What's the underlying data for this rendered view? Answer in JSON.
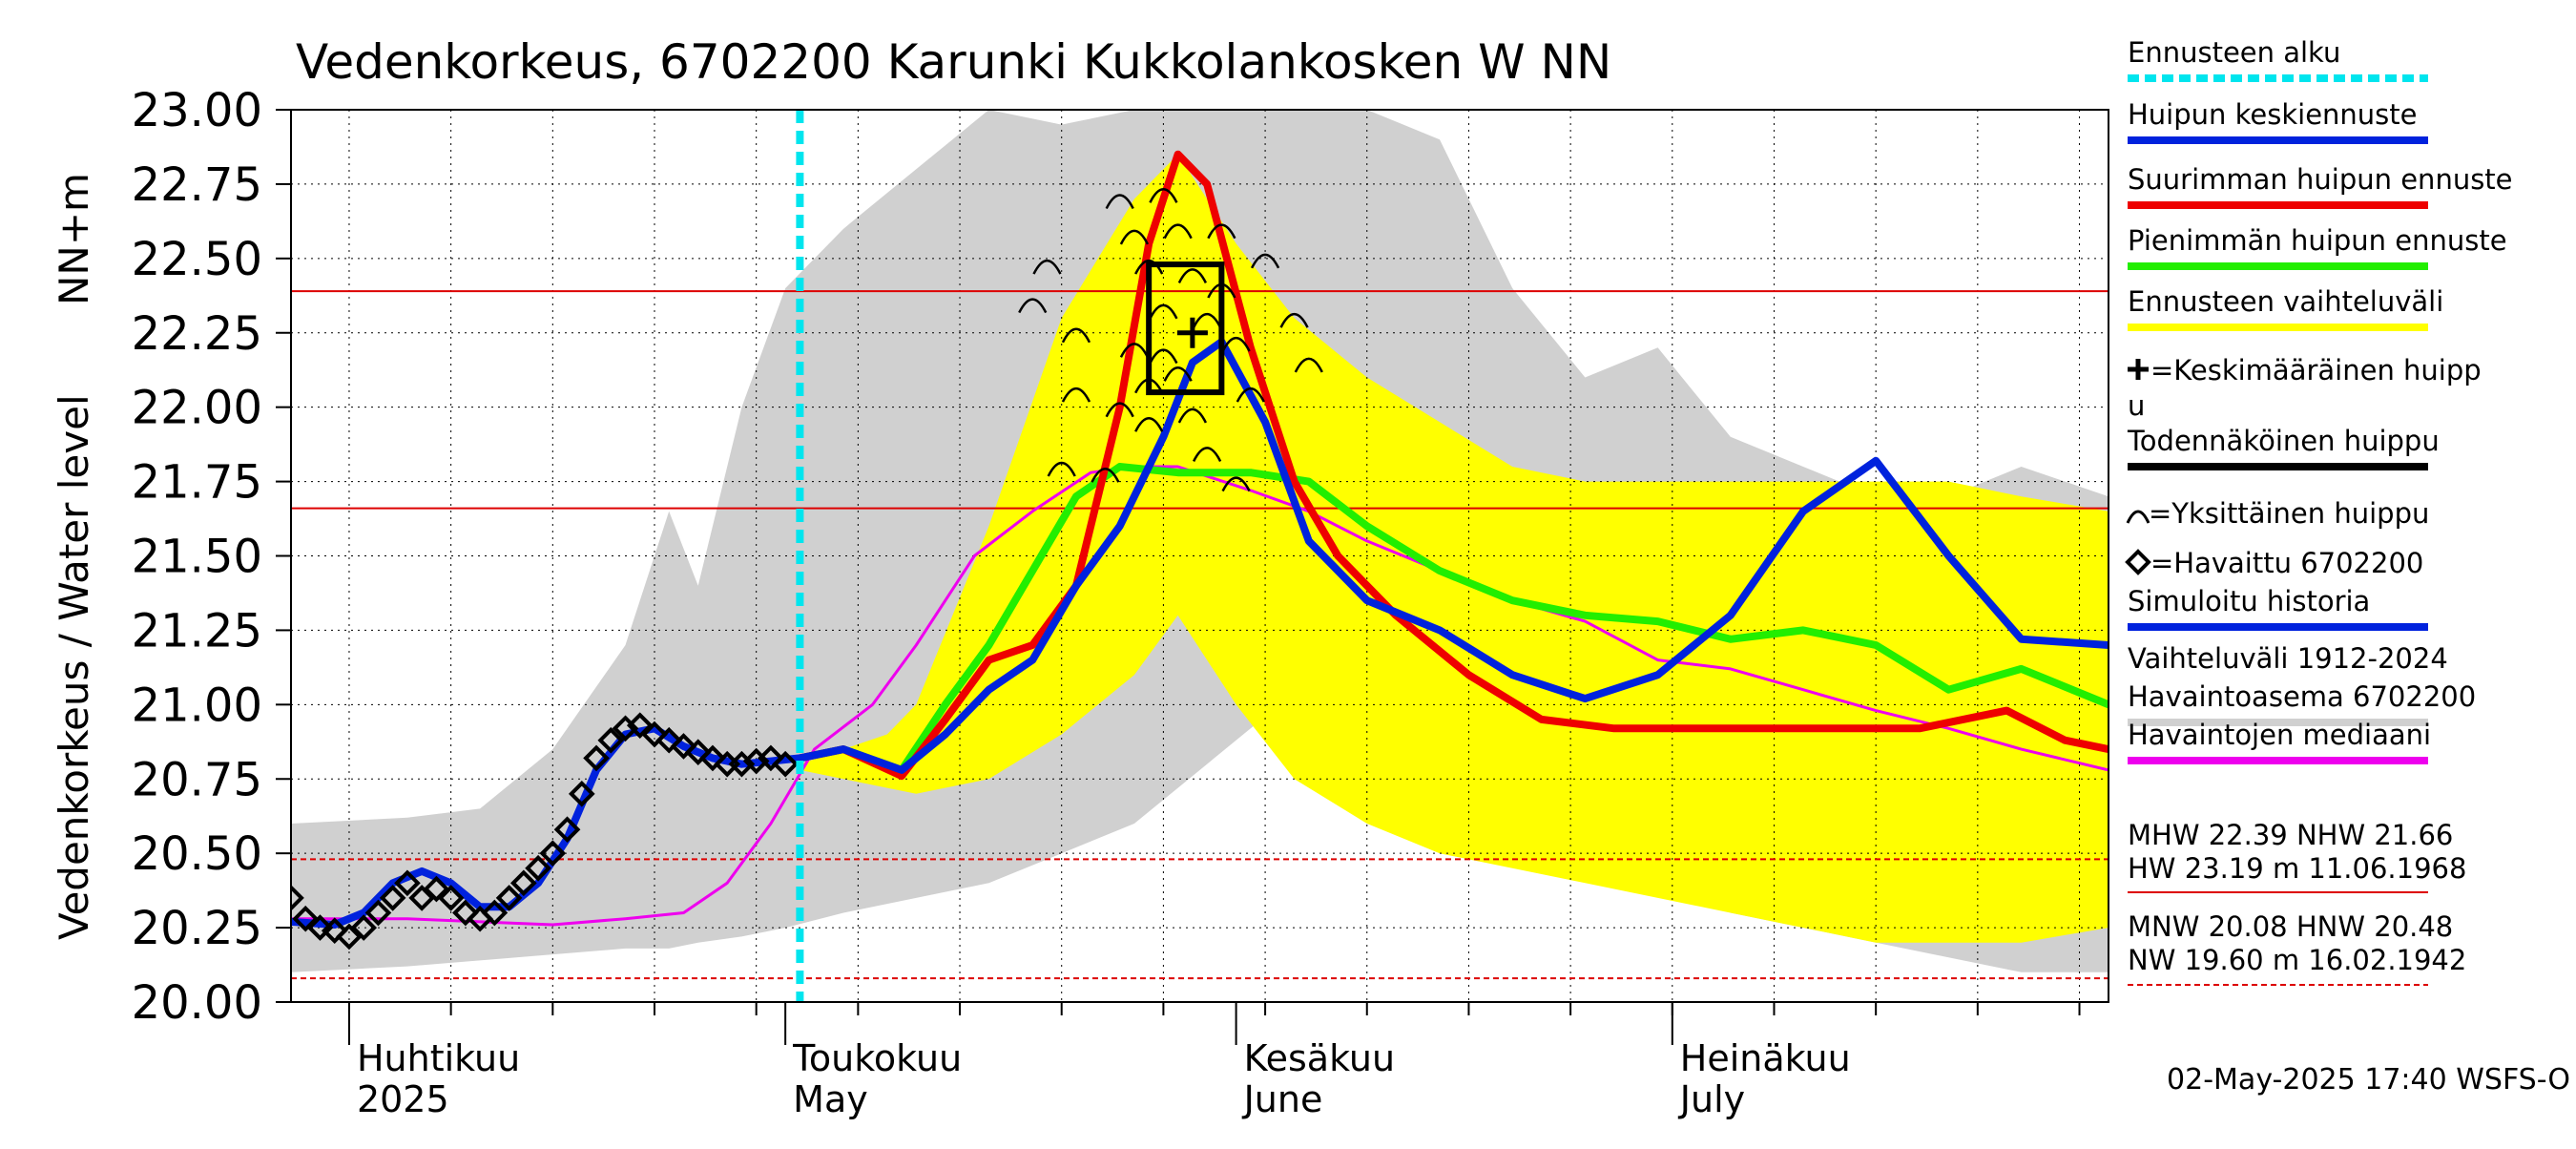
{
  "chart_data": {
    "type": "line",
    "title": "Vedenkorkeus, 6702200 Karunki Kukkolankosken W NN",
    "ylabel": "Vedenkorkeus / Water level   NN+m",
    "ylim": [
      20.0,
      23.0
    ],
    "yticks": [
      "20.00",
      "20.25",
      "20.50",
      "20.75",
      "21.00",
      "21.25",
      "21.50",
      "21.75",
      "22.00",
      "22.25",
      "22.50",
      "22.75",
      "23.00"
    ],
    "xlim": [
      "2025-03-28",
      "2025-07-31"
    ],
    "month_labels": [
      {
        "fi": "Huhtikuu",
        "en": "2025",
        "date": "2025-04-01"
      },
      {
        "fi": "Toukokuu",
        "en": "May",
        "date": "2025-05-01"
      },
      {
        "fi": "Kesäkuu",
        "en": "June",
        "date": "2025-06-01"
      },
      {
        "fi": "Heinäkuu",
        "en": "July",
        "date": "2025-07-01"
      }
    ],
    "forecast_start": "2025-05-02",
    "reference_lines": [
      {
        "name": "MHW",
        "value": 22.39,
        "style": "solid"
      },
      {
        "name": "NHW",
        "value": 21.66,
        "style": "solid"
      },
      {
        "name": "HNW",
        "value": 20.48,
        "style": "dashed"
      },
      {
        "name": "MNW",
        "value": 20.08,
        "style": "dashed"
      }
    ],
    "historical_range": {
      "name": "Vaihteluväli 1912-2024 Havaintoasema 6702200",
      "dates": [
        "2025-03-28",
        "2025-04-05",
        "2025-04-10",
        "2025-04-15",
        "2025-04-20",
        "2025-04-23",
        "2025-04-25",
        "2025-04-28",
        "2025-05-01",
        "2025-05-05",
        "2025-05-10",
        "2025-05-15",
        "2025-05-20",
        "2025-05-25",
        "2025-05-30",
        "2025-06-04",
        "2025-06-10",
        "2025-06-15",
        "2025-06-20",
        "2025-06-25",
        "2025-06-30",
        "2025-07-05",
        "2025-07-10",
        "2025-07-15",
        "2025-07-20",
        "2025-07-25",
        "2025-07-31"
      ],
      "upper": [
        20.6,
        20.62,
        20.65,
        20.85,
        21.2,
        21.65,
        21.4,
        22.0,
        22.4,
        22.6,
        22.8,
        23.0,
        22.95,
        23.0,
        23.0,
        23.0,
        23.0,
        22.9,
        22.4,
        22.1,
        22.2,
        21.9,
        21.8,
        21.7,
        21.7,
        21.8,
        21.7
      ],
      "lower": [
        20.1,
        20.12,
        20.14,
        20.16,
        20.18,
        20.18,
        20.2,
        20.22,
        20.25,
        20.3,
        20.35,
        20.4,
        20.5,
        20.6,
        20.8,
        21.0,
        20.85,
        20.7,
        20.55,
        20.5,
        20.4,
        20.3,
        20.25,
        20.2,
        20.15,
        20.1,
        20.1
      ]
    },
    "forecast_band": {
      "name": "Ennusteen vaihteluväli",
      "dates": [
        "2025-05-02",
        "2025-05-05",
        "2025-05-08",
        "2025-05-10",
        "2025-05-15",
        "2025-05-20",
        "2025-05-25",
        "2025-05-28",
        "2025-06-01",
        "2025-06-05",
        "2025-06-10",
        "2025-06-15",
        "2025-06-20",
        "2025-06-25",
        "2025-06-30",
        "2025-07-05",
        "2025-07-10",
        "2025-07-15",
        "2025-07-20",
        "2025-07-25",
        "2025-07-31"
      ],
      "upper": [
        20.8,
        20.85,
        20.9,
        21.0,
        21.6,
        22.3,
        22.7,
        22.85,
        22.55,
        22.3,
        22.1,
        21.95,
        21.8,
        21.75,
        21.75,
        21.75,
        21.75,
        21.75,
        21.75,
        21.7,
        21.65
      ],
      "lower": [
        20.78,
        20.75,
        20.72,
        20.7,
        20.75,
        20.9,
        21.1,
        21.3,
        21.0,
        20.75,
        20.6,
        20.5,
        20.45,
        20.4,
        20.35,
        20.3,
        20.25,
        20.2,
        20.2,
        20.2,
        20.25
      ]
    },
    "series": [
      {
        "name": "Havaittu 6702200",
        "dates": [
          "2025-03-28",
          "2025-03-29",
          "2025-03-30",
          "2025-03-31",
          "2025-04-01",
          "2025-04-02",
          "2025-04-03",
          "2025-04-04",
          "2025-04-05",
          "2025-04-06",
          "2025-04-07",
          "2025-04-08",
          "2025-04-09",
          "2025-04-10",
          "2025-04-11",
          "2025-04-12",
          "2025-04-13",
          "2025-04-14",
          "2025-04-15",
          "2025-04-16",
          "2025-04-17",
          "2025-04-18",
          "2025-04-19",
          "2025-04-20",
          "2025-04-21",
          "2025-04-22",
          "2025-04-23",
          "2025-04-24",
          "2025-04-25",
          "2025-04-26",
          "2025-04-27",
          "2025-04-28",
          "2025-04-29",
          "2025-04-30",
          "2025-05-01"
        ],
        "values": [
          20.35,
          20.28,
          20.25,
          20.24,
          20.22,
          20.25,
          20.3,
          20.35,
          20.4,
          20.35,
          20.38,
          20.35,
          20.3,
          20.28,
          20.3,
          20.35,
          20.4,
          20.45,
          20.5,
          20.58,
          20.7,
          20.82,
          20.88,
          20.92,
          20.93,
          20.9,
          20.88,
          20.86,
          20.84,
          20.82,
          20.8,
          20.8,
          20.81,
          20.82,
          20.8
        ]
      },
      {
        "name": "Simuloitu historia",
        "dates": [
          "2025-03-28",
          "2025-03-31",
          "2025-04-02",
          "2025-04-04",
          "2025-04-06",
          "2025-04-08",
          "2025-04-10",
          "2025-04-12",
          "2025-04-14",
          "2025-04-16",
          "2025-04-18",
          "2025-04-20",
          "2025-04-22",
          "2025-04-24",
          "2025-04-26",
          "2025-04-28",
          "2025-04-30",
          "2025-05-02"
        ],
        "values": [
          20.27,
          20.26,
          20.3,
          20.4,
          20.44,
          20.4,
          20.32,
          20.32,
          20.4,
          20.55,
          20.78,
          20.9,
          20.92,
          20.86,
          20.82,
          20.8,
          20.81,
          20.82
        ]
      },
      {
        "name": "Huipun keskiennuste",
        "dates": [
          "2025-05-02",
          "2025-05-05",
          "2025-05-09",
          "2025-05-12",
          "2025-05-15",
          "2025-05-18",
          "2025-05-21",
          "2025-05-24",
          "2025-05-27",
          "2025-05-29",
          "2025-05-31",
          "2025-06-03",
          "2025-06-06",
          "2025-06-10",
          "2025-06-15",
          "2025-06-20",
          "2025-06-25",
          "2025-06-30",
          "2025-07-05",
          "2025-07-10",
          "2025-07-15",
          "2025-07-20",
          "2025-07-25",
          "2025-07-31"
        ],
        "values": [
          20.82,
          20.85,
          20.78,
          20.9,
          21.05,
          21.15,
          21.4,
          21.6,
          21.9,
          22.15,
          22.22,
          21.95,
          21.55,
          21.35,
          21.25,
          21.1,
          21.02,
          21.1,
          21.3,
          21.65,
          21.82,
          21.5,
          21.22,
          21.2
        ]
      },
      {
        "name": "Suurimman huipun ennuste",
        "dates": [
          "2025-05-02",
          "2025-05-05",
          "2025-05-09",
          "2025-05-12",
          "2025-05-15",
          "2025-05-18",
          "2025-05-21",
          "2025-05-24",
          "2025-05-26",
          "2025-05-28",
          "2025-05-30",
          "2025-06-02",
          "2025-06-05",
          "2025-06-08",
          "2025-06-12",
          "2025-06-17",
          "2025-06-22",
          "2025-06-27",
          "2025-07-02",
          "2025-07-10",
          "2025-07-18",
          "2025-07-24",
          "2025-07-28",
          "2025-07-31"
        ],
        "values": [
          20.82,
          20.85,
          20.76,
          20.95,
          21.15,
          21.2,
          21.4,
          22.0,
          22.55,
          22.85,
          22.75,
          22.2,
          21.75,
          21.5,
          21.3,
          21.1,
          20.95,
          20.92,
          20.92,
          20.92,
          20.92,
          20.98,
          20.88,
          20.85
        ]
      },
      {
        "name": "Pienimmän huipun ennuste",
        "dates": [
          "2025-05-02",
          "2025-05-05",
          "2025-05-09",
          "2025-05-12",
          "2025-05-15",
          "2025-05-18",
          "2025-05-21",
          "2025-05-24",
          "2025-05-28",
          "2025-06-02",
          "2025-06-06",
          "2025-06-10",
          "2025-06-15",
          "2025-06-20",
          "2025-06-25",
          "2025-06-30",
          "2025-07-05",
          "2025-07-10",
          "2025-07-15",
          "2025-07-20",
          "2025-07-25",
          "2025-07-31"
        ],
        "values": [
          20.82,
          20.85,
          20.78,
          21.0,
          21.2,
          21.45,
          21.7,
          21.8,
          21.78,
          21.78,
          21.75,
          21.6,
          21.45,
          21.35,
          21.3,
          21.28,
          21.22,
          21.25,
          21.2,
          21.05,
          21.12,
          21.0
        ]
      },
      {
        "name": "Havaintojen mediaani",
        "dates": [
          "2025-03-28",
          "2025-04-05",
          "2025-04-10",
          "2025-04-15",
          "2025-04-20",
          "2025-04-24",
          "2025-04-27",
          "2025-04-30",
          "2025-05-03",
          "2025-05-07",
          "2025-05-10",
          "2025-05-14",
          "2025-05-18",
          "2025-05-22",
          "2025-05-25",
          "2025-05-28",
          "2025-06-02",
          "2025-06-06",
          "2025-06-10",
          "2025-06-15",
          "2025-06-20",
          "2025-06-25",
          "2025-06-30",
          "2025-07-05",
          "2025-07-10",
          "2025-07-15",
          "2025-07-20",
          "2025-07-25",
          "2025-07-31"
        ],
        "values": [
          20.28,
          20.28,
          20.27,
          20.26,
          20.28,
          20.3,
          20.4,
          20.6,
          20.85,
          21.0,
          21.2,
          21.5,
          21.65,
          21.78,
          21.8,
          21.8,
          21.72,
          21.65,
          21.55,
          21.45,
          21.35,
          21.28,
          21.15,
          21.12,
          21.05,
          20.98,
          20.92,
          20.85,
          20.78
        ]
      }
    ],
    "probable_peak_box": {
      "name": "Todennäköinen huippu",
      "x0": "2025-05-26",
      "x1": "2025-05-31",
      "y0": 22.05,
      "y1": 22.48
    },
    "mean_peak": {
      "name": "Keskimääräinen huippu",
      "date": "2025-05-29",
      "value": 22.25
    },
    "individual_peaks": {
      "name": "Yksittäinen huippu",
      "dates": [
        "2025-05-18",
        "2025-05-19",
        "2025-05-20",
        "2025-05-21",
        "2025-05-21",
        "2025-05-23",
        "2025-05-24",
        "2025-05-24",
        "2025-05-25",
        "2025-05-25",
        "2025-05-26",
        "2025-05-26",
        "2025-05-26",
        "2025-05-27",
        "2025-05-27",
        "2025-05-27",
        "2025-05-28",
        "2025-05-28",
        "2025-05-29",
        "2025-05-29",
        "2025-05-30",
        "2025-05-30",
        "2025-05-31",
        "2025-05-31",
        "2025-06-01",
        "2025-06-01",
        "2025-06-02",
        "2025-06-03",
        "2025-06-05",
        "2025-06-06"
      ],
      "values": [
        22.35,
        22.48,
        21.8,
        22.25,
        22.05,
        21.78,
        22.7,
        22.0,
        22.58,
        22.2,
        22.48,
        22.08,
        21.95,
        22.72,
        22.33,
        22.18,
        22.6,
        22.12,
        22.45,
        21.98,
        22.3,
        21.85,
        22.6,
        22.4,
        22.22,
        21.75,
        22.05,
        22.5,
        22.3,
        22.15
      ]
    },
    "legend": [
      {
        "label": "Ennusteen alku",
        "color": "#00e5ee",
        "kind": "dashed"
      },
      {
        "label": "Huipun keskiennuste",
        "color": "#0022dd",
        "kind": "line"
      },
      {
        "label": "Suurimman huipun ennuste",
        "color": "#ee0000",
        "kind": "line"
      },
      {
        "label": "Pienimmän huipun ennuste",
        "color": "#22ee00",
        "kind": "line"
      },
      {
        "label": "Ennusteen vaihteluväli",
        "color": "#ffff00",
        "kind": "line"
      },
      {
        "label": "=Keskimääräinen huipp",
        "label2": "u",
        "color": "#000000",
        "kind": "plus"
      },
      {
        "label": "Todennäköinen huippu",
        "color": "#000000",
        "kind": "line"
      },
      {
        "label": "=Yksittäinen huippu",
        "color": "#000000",
        "kind": "arc"
      },
      {
        "label": "=Havaittu 6702200",
        "color": "#000000",
        "kind": "diamond"
      },
      {
        "label": "Simuloitu historia",
        "color": "#0022dd",
        "kind": "line"
      },
      {
        "label": "Vaihteluväli 1912-2024",
        "label2": " Havaintoasema 6702200",
        "color": "#d0d0d0",
        "kind": "line"
      },
      {
        "label": "Havaintojen mediaani",
        "color": "#ee00ee",
        "kind": "line"
      }
    ],
    "stats": {
      "line1": "MHW  22.39 NHW  21.66",
      "line2": "HW  23.19 m 11.06.1968",
      "line3": "MNW  20.08 HNW  20.48",
      "line4": "NW  19.60 m 16.02.1942"
    },
    "timestamp": "02-May-2025 17:40 WSFS-O",
    "colors": {
      "mean": "#0022dd",
      "max": "#ee0000",
      "min": "#22ee00",
      "band": "#ffff00",
      "hist": "#d0d0d0",
      "median": "#ee00ee",
      "forecast_start": "#00e5ee",
      "refline": "#dd0000"
    }
  }
}
